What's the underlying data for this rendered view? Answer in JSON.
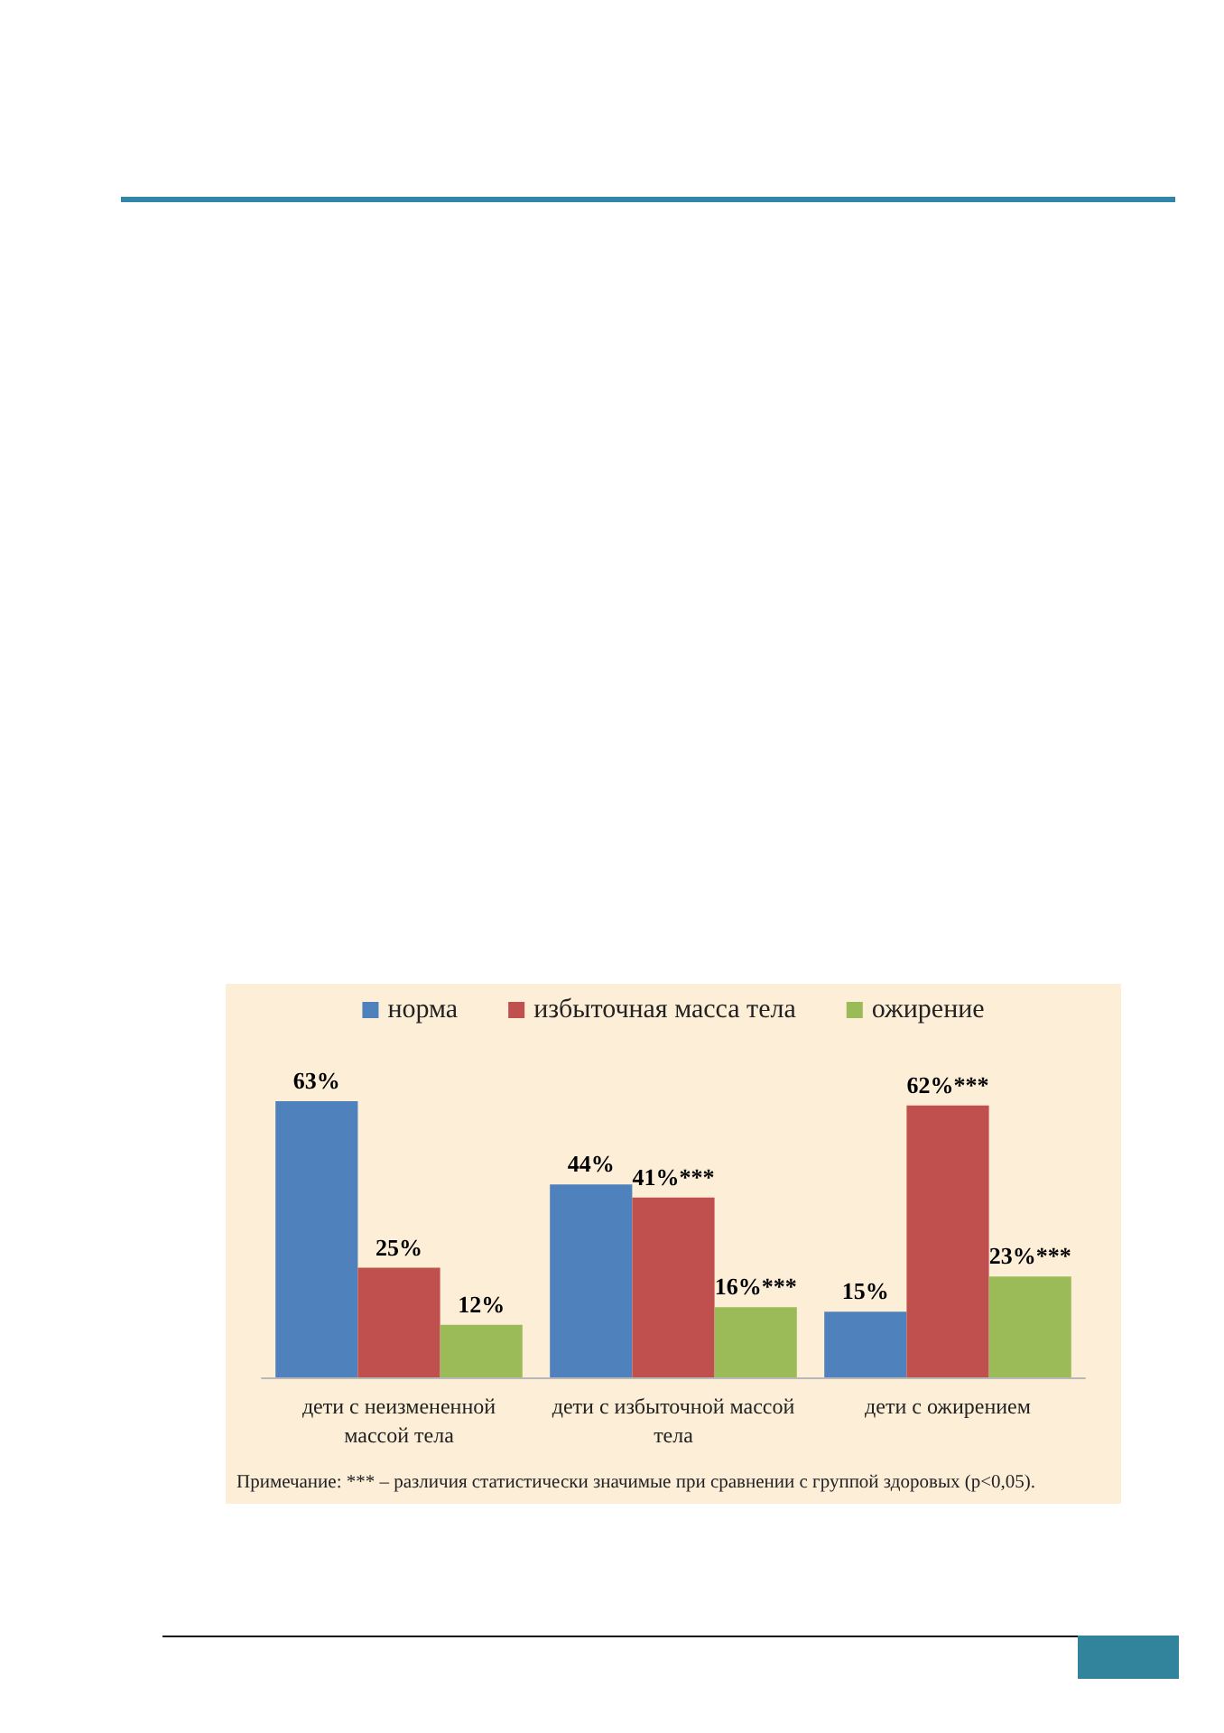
{
  "chart_data": {
    "type": "bar",
    "categories": [
      "дети с неизмененной массой тела",
      "дети с избыточной массой тела",
      "дети с ожирением"
    ],
    "series": [
      {
        "name": "норма",
        "color": "#4f81bd",
        "values": [
          63,
          44,
          15
        ],
        "value_labels": [
          "63%",
          "44%",
          "15%"
        ]
      },
      {
        "name": "избыточная масса тела",
        "color": "#c0504d",
        "values": [
          25,
          41,
          62
        ],
        "value_labels": [
          "25%",
          "41%***",
          "62%***"
        ]
      },
      {
        "name": "ожирение",
        "color": "#9bbb59",
        "values": [
          12,
          16,
          23
        ],
        "value_labels": [
          "12%",
          "16%***",
          "23%***"
        ]
      }
    ],
    "legend": "top",
    "annotations": [
      "Примечание: *** – различия статистически значимые при сравнении с группой здоровых (p<0,05)."
    ]
  }
}
